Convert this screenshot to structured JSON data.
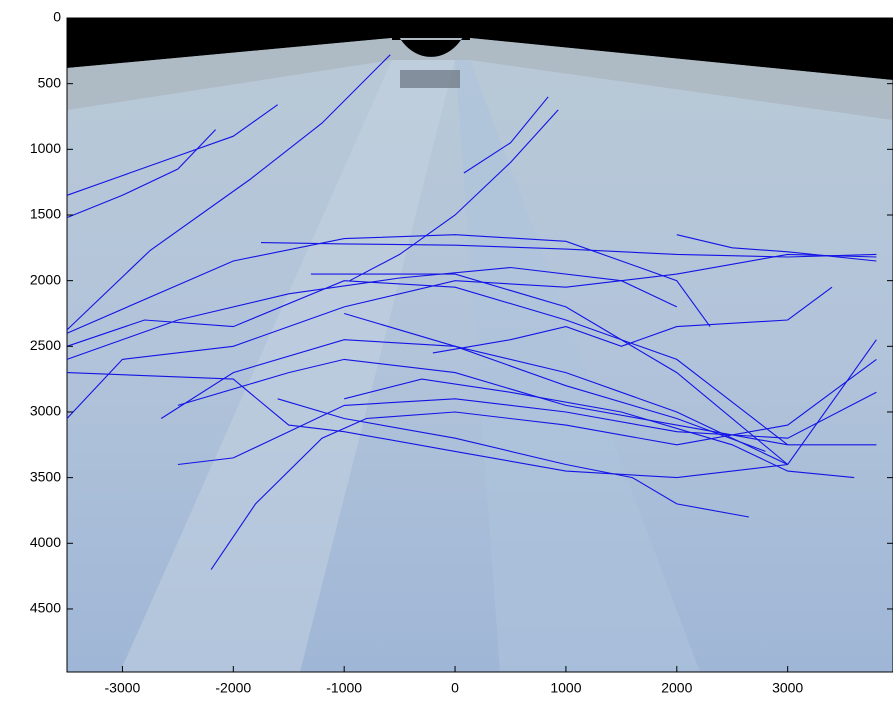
{
  "chart_data": {
    "type": "line",
    "color": "#1414e6",
    "y_reversed": true,
    "grid": false,
    "xlim": [
      -3500,
      3950
    ],
    "ylim": [
      0,
      4980
    ],
    "xticks": [
      -3000,
      -2000,
      -1000,
      0,
      1000,
      2000,
      3000
    ],
    "yticks": [
      0,
      500,
      1000,
      1500,
      2000,
      2500,
      3000,
      3500,
      4000,
      4500
    ],
    "series": [
      {
        "x": [
          -3500,
          -2750,
          -1850,
          -1200,
          -585
        ],
        "values": [
          2375,
          1770,
          1230,
          800,
          280
        ]
      },
      {
        "x": [
          -3500,
          -3000,
          -2500,
          -2000,
          -1600
        ],
        "values": [
          1350,
          1200,
          1050,
          900,
          660
        ]
      },
      {
        "x": [
          -3500,
          -3000,
          -2500,
          -2160
        ],
        "values": [
          1520,
          1350,
          1150,
          850
        ]
      },
      {
        "x": [
          80,
          500,
          840
        ],
        "values": [
          1180,
          950,
          600
        ]
      },
      {
        "x": [
          -950,
          -500,
          0,
          500,
          930
        ],
        "values": [
          2000,
          1800,
          1500,
          1100,
          700
        ]
      },
      {
        "x": [
          -1750,
          -1000,
          0,
          1000,
          2000,
          3000,
          3800
        ],
        "values": [
          1710,
          1720,
          1730,
          1760,
          1800,
          1820,
          1800
        ]
      },
      {
        "x": [
          -3500,
          -2000,
          -1000,
          0,
          1000,
          2000,
          2300
        ],
        "values": [
          2400,
          1850,
          1680,
          1650,
          1700,
          2000,
          2350
        ]
      },
      {
        "x": [
          -3500,
          -2500,
          -1500,
          -500,
          500,
          1500,
          2000
        ],
        "values": [
          2600,
          2300,
          2100,
          1980,
          1900,
          2000,
          2200
        ]
      },
      {
        "x": [
          -3500,
          -2800,
          -2000,
          -1000,
          0,
          1000,
          2000,
          3000
        ],
        "values": [
          2500,
          2300,
          2350,
          2000,
          2050,
          2300,
          2600,
          3250
        ]
      },
      {
        "x": [
          -3500,
          -3000,
          -2000,
          -1000,
          0,
          1000,
          2000,
          3000,
          3800
        ],
        "values": [
          3050,
          2600,
          2500,
          2200,
          2000,
          2050,
          1950,
          1800,
          1820
        ]
      },
      {
        "x": [
          -1300,
          0,
          1000,
          2000,
          3000
        ],
        "values": [
          1950,
          1950,
          2200,
          2700,
          3400
        ]
      },
      {
        "x": [
          -1000,
          0,
          1000,
          2000,
          2800
        ],
        "values": [
          2250,
          2500,
          2800,
          3050,
          3300
        ]
      },
      {
        "x": [
          -2650,
          -2000,
          -1000,
          0,
          1000,
          2000,
          3000
        ],
        "values": [
          3050,
          2700,
          2450,
          2500,
          2700,
          3000,
          3400
        ]
      },
      {
        "x": [
          -2500,
          -1500,
          -1000,
          0,
          1000,
          2000,
          3000,
          3800
        ],
        "values": [
          2950,
          2700,
          2600,
          2700,
          2950,
          3100,
          3250,
          3250
        ]
      },
      {
        "x": [
          -2500,
          -2000,
          -1500,
          -1000,
          0,
          1000,
          2000,
          3000,
          3800
        ],
        "values": [
          3400,
          3350,
          3150,
          2950,
          2900,
          3000,
          3150,
          3200,
          2850
        ]
      },
      {
        "x": [
          -2200,
          -1800,
          -1200,
          -800,
          0,
          1000,
          2000,
          3000,
          3800
        ],
        "values": [
          4200,
          3700,
          3200,
          3050,
          3000,
          3100,
          3250,
          3100,
          2600
        ]
      },
      {
        "x": [
          -3500,
          -2000,
          -1500,
          -1000,
          0,
          1000,
          2000,
          3000,
          3800
        ],
        "values": [
          2700,
          2750,
          3100,
          3150,
          3300,
          3450,
          3500,
          3400,
          2450
        ]
      },
      {
        "x": [
          -1600,
          -1000,
          0,
          1000,
          1600,
          2000,
          2650
        ],
        "values": [
          2900,
          3050,
          3200,
          3400,
          3500,
          3700,
          3800
        ]
      },
      {
        "x": [
          -1000,
          -300,
          500,
          1500,
          2500,
          3000,
          3600
        ],
        "values": [
          2900,
          2750,
          2850,
          3000,
          3250,
          3450,
          3500
        ]
      },
      {
        "x": [
          -200,
          500,
          1000,
          1500,
          2000,
          3000,
          3400
        ],
        "values": [
          2550,
          2450,
          2350,
          2500,
          2350,
          2300,
          2050
        ]
      },
      {
        "x": [
          2000,
          2500,
          3000,
          3800
        ],
        "values": [
          1650,
          1750,
          1780,
          1850
        ]
      }
    ]
  }
}
